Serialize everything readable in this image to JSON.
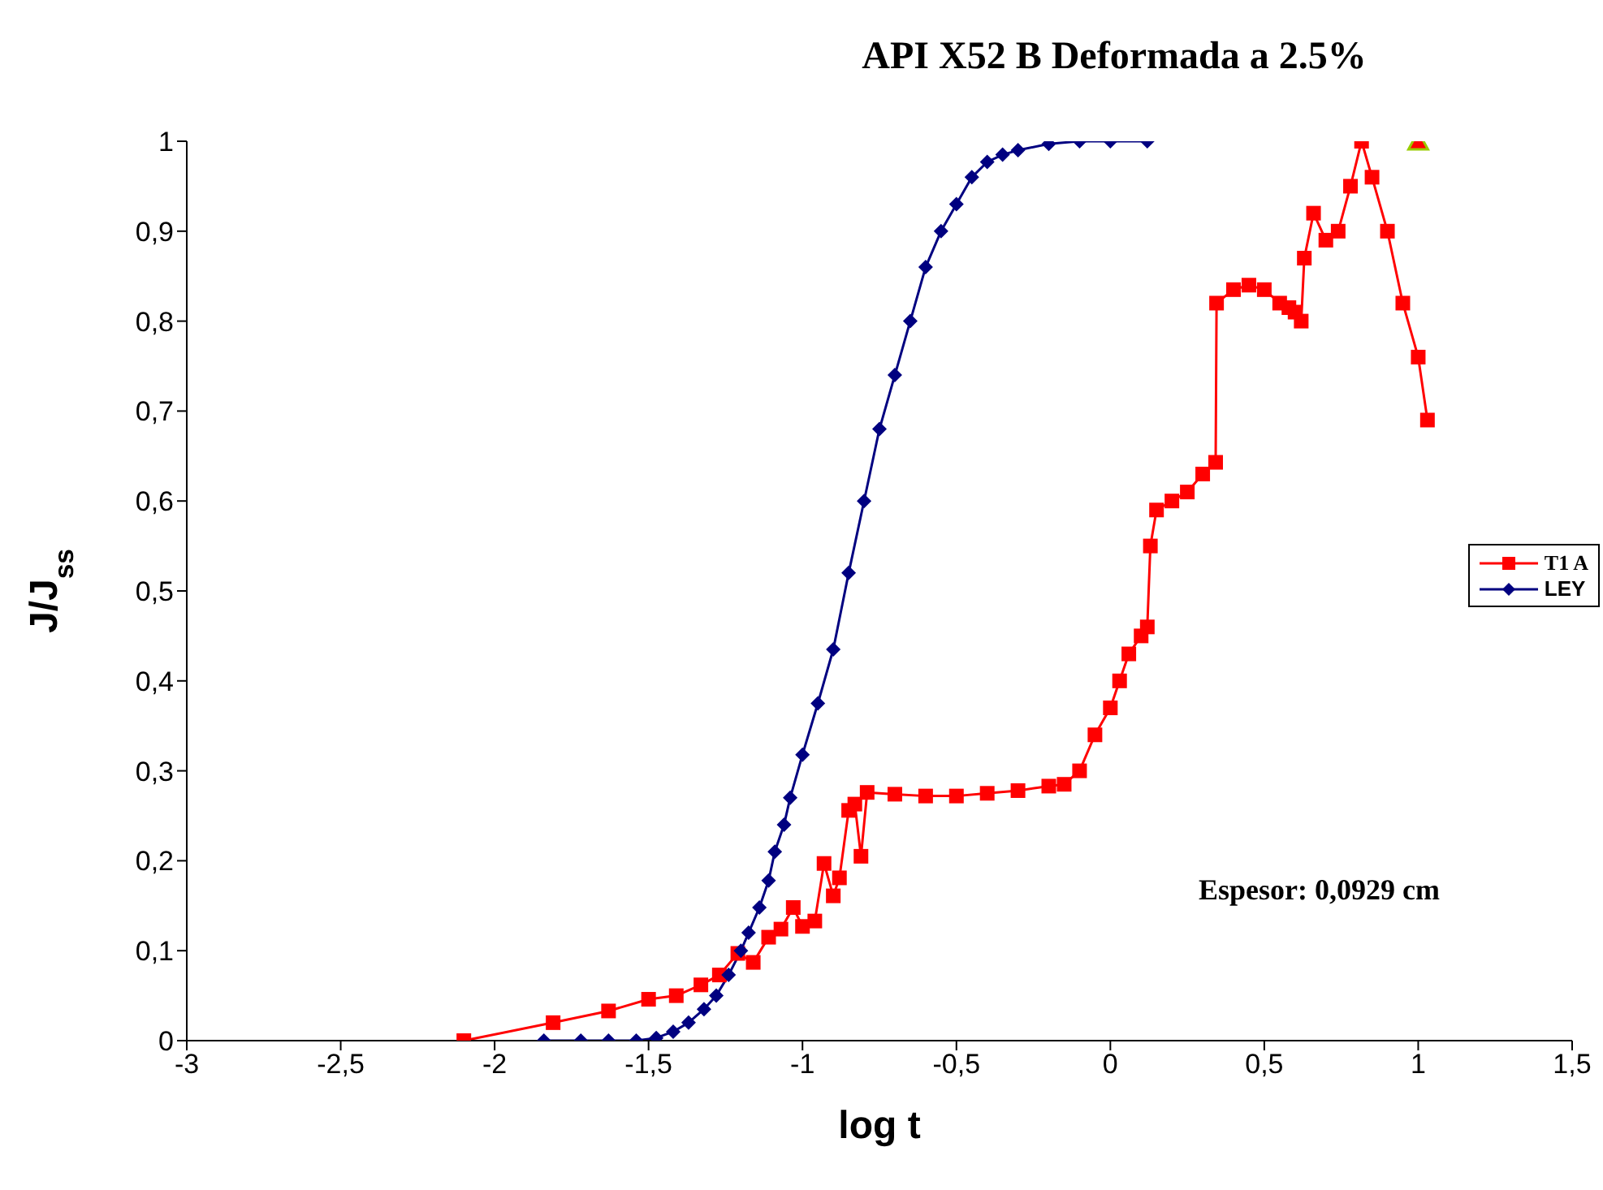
{
  "chart_data": {
    "type": "line",
    "title": "API X52 B Deformada a 2.5%",
    "xlabel": "log t",
    "ylabel": "J/J$_{ss}$",
    "annotations": [
      "Espesor: 0,0929 cm"
    ],
    "xlim": [
      -3,
      1.5
    ],
    "xticks": [
      -3,
      {
        "value": -2.5,
        "label": "-2,5"
      },
      -2,
      {
        "value": -1.5,
        "label": "-1,5"
      },
      -1,
      {
        "value": -0.5,
        "label": "-0,5"
      },
      0,
      {
        "value": 0.5,
        "label": "0,5"
      },
      1,
      {
        "value": 1.5,
        "label": "1,5"
      }
    ],
    "ylim": [
      0,
      1
    ],
    "yticks": [
      0,
      {
        "value": 0.1,
        "label": "0,1"
      },
      {
        "value": 0.2,
        "label": "0,2"
      },
      {
        "value": 0.3,
        "label": "0,3"
      },
      {
        "value": 0.4,
        "label": "0,4"
      },
      {
        "value": 0.5,
        "label": "0,5"
      },
      {
        "value": 0.6,
        "label": "0,6"
      },
      {
        "value": 0.7,
        "label": "0,7"
      },
      {
        "value": 0.8,
        "label": "0,8"
      },
      {
        "value": 0.9,
        "label": "0,9"
      },
      1
    ],
    "grid": false,
    "legend": "right",
    "line_style": "solid",
    "series": [
      {
        "name": "T1 A",
        "color": "#ff0000",
        "marker": "square",
        "x": [
          -2.1,
          -1.81,
          -1.63,
          -1.5,
          -1.41,
          -1.33,
          -1.27,
          -1.21,
          -1.16,
          -1.11,
          -1.07,
          -1.03,
          -1.0,
          -0.96,
          -0.93,
          -0.9,
          -0.88,
          -0.85,
          -0.83,
          -0.81,
          -0.79,
          -0.7,
          -0.6,
          -0.5,
          -0.4,
          -0.3,
          -0.2,
          -0.15,
          -0.1,
          -0.05,
          0,
          0.03,
          0.06,
          0.1,
          0.12,
          0.13,
          0.15,
          0.2,
          0.25,
          0.3,
          0.342,
          0.345,
          0.4,
          0.45,
          0.5,
          0.55,
          0.58,
          0.6,
          0.62,
          0.63,
          0.66,
          0.7,
          0.74,
          0.78,
          0.816,
          0.85,
          0.9,
          0.95,
          1.0,
          1.03
        ],
        "values": [
          0,
          0.02,
          0.033,
          0.046,
          0.05,
          0.062,
          0.073,
          0.097,
          0.087,
          0.115,
          0.124,
          0.148,
          0.127,
          0.133,
          0.197,
          0.161,
          0.181,
          0.256,
          0.263,
          0.205,
          0.276,
          0.274,
          0.272,
          0.272,
          0.275,
          0.278,
          0.283,
          0.285,
          0.3,
          0.34,
          0.37,
          0.4,
          0.43,
          0.45,
          0.46,
          0.55,
          0.59,
          0.6,
          0.61,
          0.63,
          0.643,
          0.82,
          0.835,
          0.84,
          0.835,
          0.82,
          0.815,
          0.81,
          0.8,
          0.87,
          0.92,
          0.89,
          0.9,
          0.95,
          1.0,
          0.96,
          0.9,
          0.82,
          0.76,
          0.69
        ]
      },
      {
        "name": "LEY",
        "color": "#000080",
        "marker": "diamond",
        "x": [
          -1.84,
          -1.72,
          -1.63,
          -1.54,
          -1.475,
          -1.42,
          -1.37,
          -1.32,
          -1.28,
          -1.24,
          -1.2,
          -1.175,
          -1.14,
          -1.11,
          -1.09,
          -1.06,
          -1.04,
          -1.0,
          -0.95,
          -0.9,
          -0.85,
          -0.8,
          -0.75,
          -0.7,
          -0.65,
          -0.6,
          -0.55,
          -0.5,
          -0.45,
          -0.4,
          -0.35,
          -0.3,
          -0.2,
          -0.1,
          0,
          0.12
        ],
        "values": [
          0,
          0,
          0,
          0,
          0.003,
          0.01,
          0.02,
          0.035,
          0.05,
          0.073,
          0.1,
          0.12,
          0.148,
          0.178,
          0.21,
          0.24,
          0.27,
          0.318,
          0.375,
          0.435,
          0.52,
          0.6,
          0.68,
          0.74,
          0.8,
          0.86,
          0.9,
          0.93,
          0.96,
          0.977,
          0.985,
          0.99,
          0.997,
          1,
          1,
          1
        ]
      },
      {
        "type": "scatter",
        "color": "#ff0000",
        "marker": "triangle",
        "x": [
          1
        ],
        "values": [
          1
        ]
      }
    ]
  }
}
